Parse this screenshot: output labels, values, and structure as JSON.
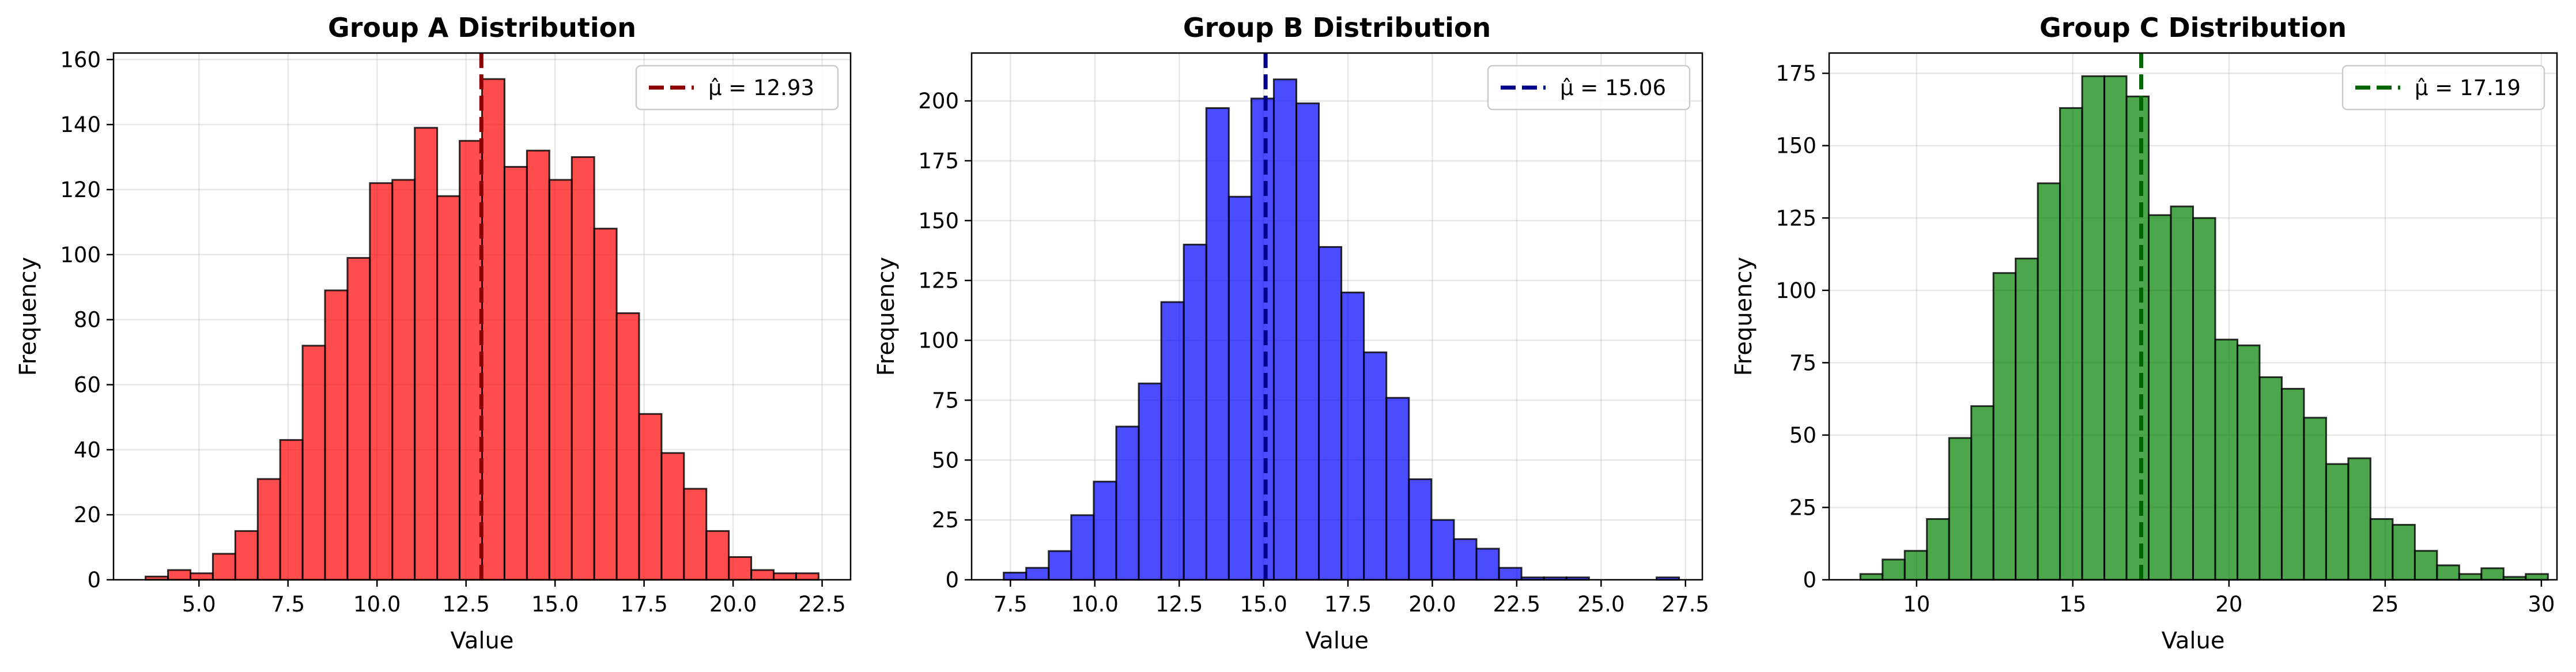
{
  "chart_data": [
    {
      "type": "bar",
      "title": "Group A Distribution",
      "xlabel": "Value",
      "ylabel": "Frequency",
      "color": "#ff0000",
      "mean_color": "#8b0000",
      "legend_label": "μ̂ = 12.93",
      "legend_position": "top-right",
      "grid": true,
      "mean": 12.93,
      "xlim": [
        2.6,
        23.3
      ],
      "ylim": [
        0,
        162
      ],
      "xticks": [
        5.0,
        7.5,
        10.0,
        12.5,
        15.0,
        17.5,
        20.0,
        22.5
      ],
      "xtick_labels": [
        "5.0",
        "7.5",
        "10.0",
        "12.5",
        "15.0",
        "17.5",
        "20.0",
        "22.5"
      ],
      "yticks": [
        0,
        20,
        40,
        60,
        80,
        100,
        120,
        140,
        160
      ],
      "ytick_labels": [
        "0",
        "20",
        "40",
        "60",
        "80",
        "100",
        "120",
        "140",
        "160"
      ],
      "bin_start": 3.5,
      "bin_width": 0.63,
      "values": [
        1,
        3,
        2,
        8,
        15,
        31,
        43,
        72,
        89,
        99,
        122,
        123,
        139,
        118,
        135,
        154,
        127,
        132,
        123,
        130,
        108,
        82,
        51,
        39,
        28,
        15,
        7,
        3,
        2,
        2
      ]
    },
    {
      "type": "bar",
      "title": "Group B Distribution",
      "xlabel": "Value",
      "ylabel": "Frequency",
      "color": "#0000ff",
      "mean_color": "#00008b",
      "legend_label": "μ̂ = 15.06",
      "legend_position": "top-right",
      "grid": true,
      "mean": 15.06,
      "xlim": [
        6.35,
        28.0
      ],
      "ylim": [
        0,
        220
      ],
      "xticks": [
        7.5,
        10.0,
        12.5,
        15.0,
        17.5,
        20.0,
        22.5,
        25.0,
        27.5
      ],
      "xtick_labels": [
        "7.5",
        "10.0",
        "12.5",
        "15.0",
        "17.5",
        "20.0",
        "22.5",
        "25.0",
        "27.5"
      ],
      "yticks": [
        0,
        25,
        50,
        75,
        100,
        125,
        150,
        175,
        200
      ],
      "ytick_labels": [
        "0",
        "25",
        "50",
        "75",
        "100",
        "125",
        "150",
        "175",
        "200"
      ],
      "bin_start": 7.3,
      "bin_width": 0.667,
      "values": [
        3,
        5,
        12,
        27,
        41,
        64,
        82,
        116,
        140,
        197,
        160,
        201,
        209,
        199,
        139,
        120,
        95,
        76,
        42,
        25,
        17,
        13,
        5,
        1,
        1,
        1,
        0,
        0,
        0,
        1
      ]
    },
    {
      "type": "bar",
      "title": "Group C Distribution",
      "xlabel": "Value",
      "ylabel": "Frequency",
      "color": "#008000",
      "mean_color": "#006400",
      "legend_label": "μ̂ = 17.19",
      "legend_position": "top-right",
      "grid": true,
      "mean": 17.19,
      "xlim": [
        7.2,
        30.5
      ],
      "ylim": [
        0,
        182
      ],
      "xticks": [
        10,
        15,
        20,
        25,
        30
      ],
      "xtick_labels": [
        "10",
        "15",
        "20",
        "25",
        "30"
      ],
      "yticks": [
        0,
        25,
        50,
        75,
        100,
        125,
        150,
        175
      ],
      "ytick_labels": [
        "0",
        "25",
        "50",
        "75",
        "100",
        "125",
        "150",
        "175"
      ],
      "bin_start": 8.2,
      "bin_width": 0.71,
      "values": [
        2,
        7,
        10,
        21,
        49,
        60,
        106,
        111,
        137,
        163,
        174,
        174,
        167,
        126,
        129,
        125,
        83,
        81,
        70,
        66,
        56,
        40,
        42,
        21,
        19,
        10,
        5,
        2,
        4,
        1,
        2
      ]
    }
  ]
}
